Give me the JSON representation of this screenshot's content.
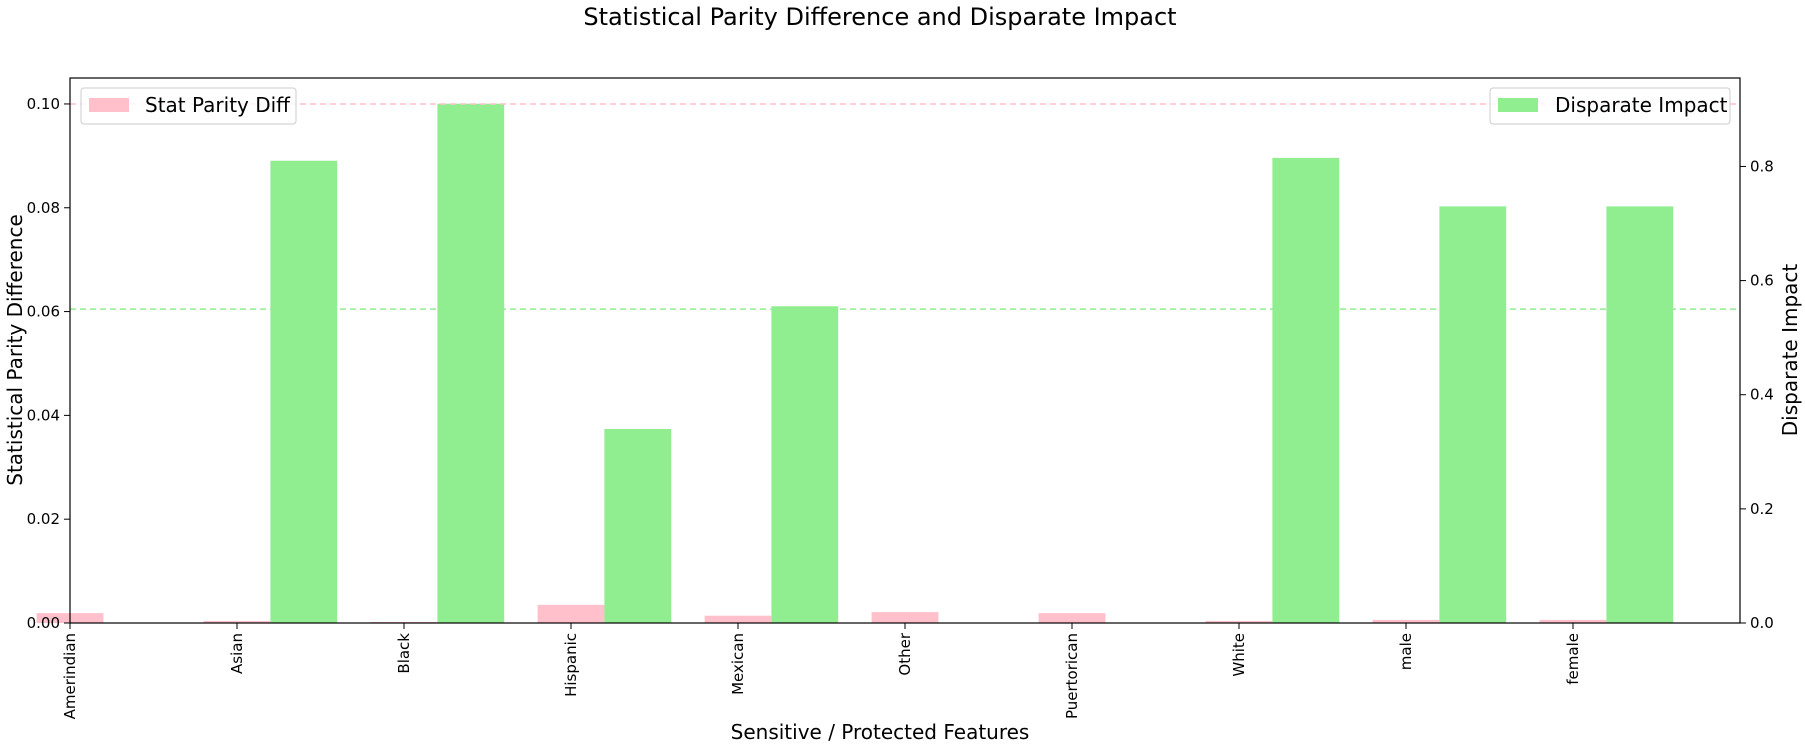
{
  "chart_data": {
    "type": "bar",
    "title": "Statistical Parity Difference and Disparate Impact",
    "xlabel": "Sensitive / Protected Features",
    "ylabel_left": "Statistical Parity Difference",
    "ylabel_right": "Disparate Impact",
    "categories": [
      "Amerindian",
      "Asian",
      "Black",
      "Hispanic",
      "Mexican",
      "Other",
      "Puertorican",
      "White",
      "male",
      "female"
    ],
    "series": [
      {
        "name": "Stat Parity Diff",
        "axis": "left",
        "color": "#ffc0cb",
        "values": [
          0.0019,
          0.0004,
          0.0002,
          0.0035,
          0.0014,
          0.0021,
          0.0019,
          0.0004,
          0.0006,
          0.0006
        ]
      },
      {
        "name": "Disparate Impact",
        "axis": "right",
        "color": "#90ee90",
        "values": [
          0.0,
          0.81,
          0.91,
          0.34,
          0.555,
          0.0,
          0.0,
          0.815,
          0.73,
          0.73
        ]
      }
    ],
    "ylim_left": [
      0,
      0.105
    ],
    "ylim_right": [
      0,
      0.955
    ],
    "yticks_left": [
      "0.00",
      "0.02",
      "0.04",
      "0.06",
      "0.08",
      "0.10"
    ],
    "yticks_left_values": [
      0,
      0.02,
      0.04,
      0.06,
      0.08,
      0.1
    ],
    "yticks_right": [
      "0.0",
      "0.2",
      "0.4",
      "0.6",
      "0.8"
    ],
    "yticks_right_values": [
      0,
      0.2,
      0.4,
      0.6,
      0.8
    ],
    "reference_lines": [
      {
        "axis": "left",
        "value": 0.1,
        "color": "#ffc0cb",
        "style": "dashed"
      },
      {
        "axis": "right",
        "value": 0.55,
        "color": "#90ee90",
        "style": "dashed"
      }
    ],
    "legend_left_placement": "top-left",
    "legend_right_placement": "top-right",
    "grid": false
  }
}
